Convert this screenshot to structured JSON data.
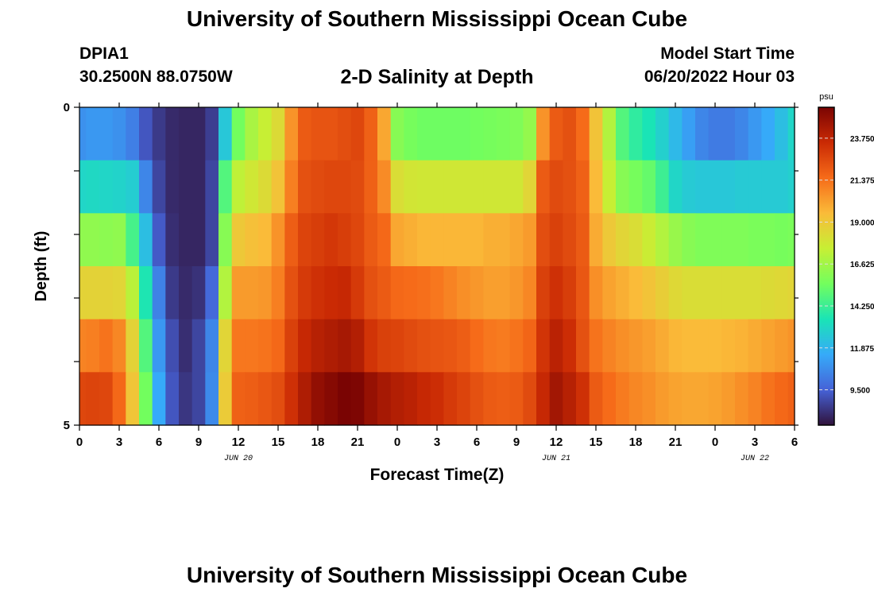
{
  "header": {
    "title": "University of Southern Mississippi Ocean Cube",
    "station_id": "DPIA1",
    "coordinates": "30.2500N  88.0750W",
    "model_start_label": "Model Start Time",
    "model_start_value": "06/20/2022 Hour 03"
  },
  "footer": {
    "title": "University of Southern Mississippi Ocean Cube"
  },
  "colors": {
    "colormap": [
      "#30123b",
      "#4662d7",
      "#36aaf9",
      "#1ae4b6",
      "#72fe5e",
      "#c7ef34",
      "#fabb39",
      "#f66b19",
      "#ca2a04",
      "#7a0403"
    ]
  },
  "chart_data": {
    "type": "heatmap",
    "title": "2-D Salinity at Depth",
    "xlabel": "Forecast Time(Z)",
    "ylabel": "Depth (ft)",
    "x_hours": [
      0,
      1,
      2,
      3,
      4,
      5,
      6,
      7,
      8,
      9,
      10,
      11,
      12,
      13,
      14,
      15,
      16,
      17,
      18,
      19,
      20,
      21,
      22,
      23,
      24,
      25,
      26,
      27,
      28,
      29,
      30,
      31,
      32,
      33,
      34,
      35,
      36,
      37,
      38,
      39,
      40,
      41,
      42,
      43,
      44,
      45,
      46,
      47,
      48,
      49,
      50,
      51,
      52,
      53,
      54
    ],
    "depth_ft": [
      0,
      1,
      2,
      3,
      4,
      5
    ],
    "x_tick_labels": [
      "0",
      "3",
      "6",
      "9",
      "12",
      "15",
      "18",
      "21",
      "0",
      "3",
      "6",
      "9",
      "12",
      "15",
      "18",
      "21",
      "0",
      "3",
      "6"
    ],
    "date_labels": [
      {
        "text": "JUN 20",
        "hour": 12
      },
      {
        "text": "JUN 21",
        "hour": 36
      },
      {
        "text": "JUN 22",
        "hour": 51
      }
    ],
    "y_tick_labels": [
      "0",
      "5"
    ],
    "xlim": [
      0,
      54
    ],
    "ylim": [
      0,
      5
    ],
    "colorbar": {
      "unit": "psu",
      "min": 7.5,
      "max": 25.5,
      "ticks": [
        "23.750",
        "21.375",
        "19.000",
        "16.625",
        "14.250",
        "11.875",
        "9.500"
      ]
    },
    "salinity_psu": [
      [
        10.8,
        11.0,
        11.0,
        10.8,
        10.3,
        9.2,
        8.5,
        8.1,
        8.0,
        8.0,
        8.6,
        12.5,
        15.5,
        16.8,
        17.5,
        18.3,
        20.5,
        22.0,
        22.2,
        22.2,
        22.4,
        22.6,
        21.8,
        20.0,
        16.0,
        15.6,
        15.4,
        15.4,
        15.4,
        15.4,
        15.5,
        15.6,
        15.7,
        15.8,
        16.3,
        20.5,
        22.0,
        22.3,
        21.5,
        19.2,
        17.0,
        14.8,
        14.0,
        13.5,
        12.8,
        12.0,
        11.2,
        10.5,
        10.2,
        10.2,
        10.5,
        11.0,
        11.5,
        12.2,
        13.0
      ],
      [
        13.0,
        13.1,
        13.0,
        12.9,
        12.7,
        10.5,
        8.8,
        8.1,
        8.0,
        8.0,
        8.8,
        14.8,
        17.3,
        17.8,
        18.3,
        19.2,
        21.0,
        22.3,
        22.5,
        22.6,
        22.6,
        22.5,
        21.8,
        20.7,
        18.2,
        17.9,
        17.8,
        17.8,
        17.8,
        17.8,
        17.8,
        17.8,
        17.8,
        17.8,
        18.5,
        22.0,
        22.5,
        22.3,
        21.8,
        19.5,
        17.5,
        16.0,
        15.6,
        15.2,
        14.3,
        13.0,
        12.6,
        12.5,
        12.5,
        12.5,
        12.6,
        12.6,
        12.6,
        12.6,
        12.8
      ],
      [
        16.2,
        16.2,
        16.1,
        16.2,
        14.5,
        12.2,
        9.3,
        8.2,
        8.0,
        8.0,
        8.8,
        16.0,
        19.0,
        19.3,
        19.5,
        20.5,
        21.9,
        22.7,
        22.9,
        23.1,
        22.9,
        22.6,
        22.0,
        21.6,
        20.0,
        19.8,
        19.6,
        19.6,
        19.6,
        19.6,
        19.6,
        19.8,
        19.8,
        20.0,
        20.3,
        22.4,
        22.8,
        22.5,
        22.0,
        19.9,
        19.0,
        18.5,
        18.2,
        17.6,
        17.0,
        16.4,
        16.0,
        15.8,
        15.8,
        15.8,
        15.8,
        15.7,
        15.7,
        15.6,
        15.7
      ],
      [
        18.6,
        18.6,
        18.6,
        18.5,
        17.2,
        13.6,
        10.4,
        8.5,
        8.1,
        8.3,
        9.7,
        17.0,
        20.3,
        20.3,
        20.4,
        21.0,
        22.3,
        23.0,
        23.3,
        23.5,
        23.6,
        23.0,
        22.3,
        22.0,
        21.6,
        21.5,
        21.4,
        21.2,
        20.9,
        20.6,
        20.4,
        20.2,
        20.2,
        20.4,
        20.8,
        22.8,
        23.3,
        22.9,
        22.1,
        20.6,
        20.1,
        19.8,
        19.5,
        19.2,
        18.8,
        18.4,
        18.2,
        18.2,
        18.2,
        18.2,
        18.2,
        18.2,
        18.3,
        18.4,
        18.5
      ],
      [
        20.9,
        21.0,
        21.3,
        20.8,
        18.6,
        14.8,
        11.0,
        9.0,
        8.2,
        8.8,
        10.5,
        18.5,
        21.2,
        21.2,
        21.3,
        21.6,
        22.8,
        23.6,
        24.0,
        24.2,
        24.4,
        24.1,
        23.2,
        22.8,
        22.7,
        22.5,
        22.3,
        22.2,
        22.1,
        21.9,
        21.5,
        21.2,
        21.1,
        21.3,
        21.7,
        23.2,
        23.9,
        23.4,
        22.3,
        21.3,
        20.9,
        20.6,
        20.4,
        20.2,
        19.9,
        19.6,
        19.5,
        19.5,
        19.5,
        19.6,
        19.7,
        19.9,
        20.1,
        20.3,
        20.5
      ],
      [
        22.6,
        22.7,
        22.6,
        21.6,
        19.1,
        15.5,
        11.5,
        9.2,
        8.4,
        8.8,
        10.6,
        18.9,
        21.8,
        21.9,
        22.1,
        22.4,
        23.3,
        24.2,
        24.9,
        25.2,
        25.5,
        25.4,
        24.8,
        24.4,
        24.1,
        23.9,
        23.6,
        23.4,
        23.0,
        22.7,
        22.3,
        22.0,
        21.9,
        22.0,
        22.5,
        23.6,
        24.5,
        24.0,
        23.3,
        22.0,
        21.5,
        21.1,
        20.8,
        20.6,
        20.3,
        20.1,
        20.0,
        20.0,
        20.1,
        20.3,
        20.6,
        20.9,
        21.3,
        21.6,
        21.8
      ]
    ]
  }
}
